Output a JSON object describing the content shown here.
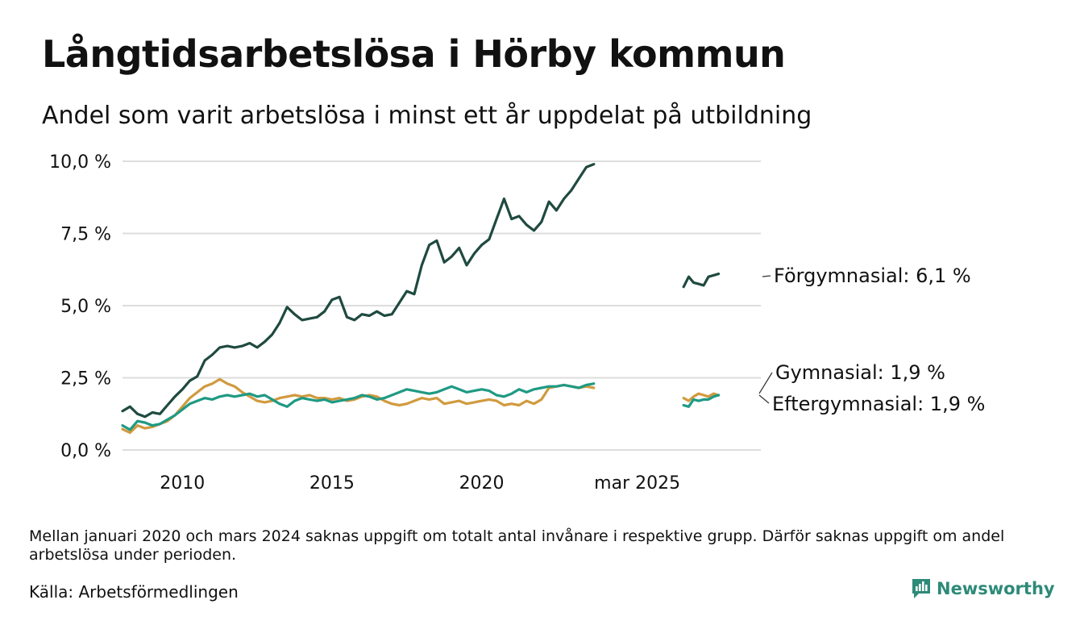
{
  "title": "Långtidsarbetslösa i Hörby kommun",
  "subtitle": "Andel som varit arbetslösa i minst ett år uppdelat på utbildning",
  "note": "Mellan januari 2020 och mars 2024 saknas uppgift om totalt antal invånare i respektive grupp. Därför saknas uppgift om andel arbetslösa under perioden.",
  "source": "Källa: Arbetsförmedlingen",
  "brand": "Newsworthy",
  "brand_color": "#2d8a78",
  "chart_data": {
    "type": "line",
    "title": "Långtidsarbetslösa i Hörby kommun",
    "subtitle": "Andel som varit arbetslösa i minst ett år uppdelat på utbildning",
    "ylim": [
      0,
      10
    ],
    "yticks": [
      {
        "value": 0,
        "label": "0,0 %"
      },
      {
        "value": 2.5,
        "label": "2,5 %"
      },
      {
        "value": 5,
        "label": "5,0 %"
      },
      {
        "value": 7.5,
        "label": "7,5 %"
      },
      {
        "value": 10,
        "label": "10,0 %"
      }
    ],
    "xlim": [
      2008.0,
      2029.33
    ],
    "xticks": [
      {
        "value": 2010,
        "label": "2010"
      },
      {
        "value": 2015,
        "label": "2015"
      },
      {
        "value": 2020,
        "label": "2020"
      },
      {
        "value": 2025.2,
        "label": "mar 2025"
      }
    ],
    "grid": true,
    "legend": "end labels on the right",
    "series": [
      {
        "name": "Förgymnasial",
        "end_label": "Förgymnasial: 6,1 %",
        "color": "#1f4a40",
        "segments": [
          [
            [
              2008.0,
              1.35
            ],
            [
              2008.25,
              1.5
            ],
            [
              2008.5,
              1.25
            ],
            [
              2008.75,
              1.15
            ],
            [
              2009.0,
              1.3
            ],
            [
              2009.25,
              1.25
            ],
            [
              2009.5,
              1.55
            ],
            [
              2009.75,
              1.85
            ],
            [
              2010.0,
              2.1
            ],
            [
              2010.25,
              2.4
            ],
            [
              2010.5,
              2.55
            ],
            [
              2010.75,
              3.1
            ],
            [
              2011.0,
              3.3
            ],
            [
              2011.25,
              3.55
            ],
            [
              2011.5,
              3.6
            ],
            [
              2011.75,
              3.55
            ],
            [
              2012.0,
              3.6
            ],
            [
              2012.25,
              3.7
            ],
            [
              2012.5,
              3.55
            ],
            [
              2012.75,
              3.75
            ],
            [
              2013.0,
              4.0
            ],
            [
              2013.25,
              4.4
            ],
            [
              2013.5,
              4.95
            ],
            [
              2013.75,
              4.7
            ],
            [
              2014.0,
              4.5
            ],
            [
              2014.25,
              4.55
            ],
            [
              2014.5,
              4.6
            ],
            [
              2014.75,
              4.8
            ],
            [
              2015.0,
              5.2
            ],
            [
              2015.25,
              5.3
            ],
            [
              2015.5,
              4.6
            ],
            [
              2015.75,
              4.5
            ],
            [
              2016.0,
              4.7
            ],
            [
              2016.25,
              4.65
            ],
            [
              2016.5,
              4.8
            ],
            [
              2016.75,
              4.65
            ],
            [
              2017.0,
              4.7
            ],
            [
              2017.25,
              5.1
            ],
            [
              2017.5,
              5.5
            ],
            [
              2017.75,
              5.4
            ],
            [
              2018.0,
              6.4
            ],
            [
              2018.25,
              7.1
            ],
            [
              2018.5,
              7.25
            ],
            [
              2018.75,
              6.5
            ],
            [
              2019.0,
              6.7
            ],
            [
              2019.25,
              7.0
            ],
            [
              2019.5,
              6.4
            ],
            [
              2019.75,
              6.8
            ],
            [
              2020.0,
              7.1
            ],
            [
              2020.25,
              7.3
            ],
            [
              2020.5,
              8.0
            ],
            [
              2020.75,
              8.7
            ],
            [
              2021.0,
              8.0
            ],
            [
              2021.25,
              8.1
            ],
            [
              2021.5,
              7.8
            ],
            [
              2021.75,
              7.6
            ],
            [
              2022.0,
              7.9
            ],
            [
              2022.25,
              8.6
            ],
            [
              2022.5,
              8.3
            ],
            [
              2022.75,
              8.7
            ],
            [
              2023.0,
              9.0
            ],
            [
              2023.25,
              9.4
            ],
            [
              2023.5,
              9.8
            ],
            [
              2023.75,
              9.9
            ]
          ],
          [
            [
              2026.75,
              5.65
            ],
            [
              2026.92,
              6.0
            ],
            [
              2027.08,
              5.8
            ],
            [
              2027.25,
              5.75
            ],
            [
              2027.42,
              5.7
            ],
            [
              2027.58,
              6.0
            ],
            [
              2027.75,
              6.05
            ],
            [
              2027.92,
              6.1
            ]
          ]
        ]
      },
      {
        "name": "Gymnasial",
        "end_label": "Gymnasial: 1,9 %",
        "color": "#d19a3f",
        "segments": [
          [
            [
              2008.0,
              0.72
            ],
            [
              2008.25,
              0.6
            ],
            [
              2008.5,
              0.85
            ],
            [
              2008.75,
              0.75
            ],
            [
              2009.0,
              0.8
            ],
            [
              2009.25,
              0.9
            ],
            [
              2009.5,
              1.0
            ],
            [
              2009.75,
              1.2
            ],
            [
              2010.0,
              1.5
            ],
            [
              2010.25,
              1.8
            ],
            [
              2010.5,
              2.0
            ],
            [
              2010.75,
              2.2
            ],
            [
              2011.0,
              2.3
            ],
            [
              2011.25,
              2.45
            ],
            [
              2011.5,
              2.3
            ],
            [
              2011.75,
              2.2
            ],
            [
              2012.0,
              2.0
            ],
            [
              2012.25,
              1.85
            ],
            [
              2012.5,
              1.7
            ],
            [
              2012.75,
              1.65
            ],
            [
              2013.0,
              1.7
            ],
            [
              2013.25,
              1.8
            ],
            [
              2013.5,
              1.85
            ],
            [
              2013.75,
              1.9
            ],
            [
              2014.0,
              1.85
            ],
            [
              2014.25,
              1.9
            ],
            [
              2014.5,
              1.8
            ],
            [
              2014.75,
              1.8
            ],
            [
              2015.0,
              1.75
            ],
            [
              2015.25,
              1.8
            ],
            [
              2015.5,
              1.7
            ],
            [
              2015.75,
              1.75
            ],
            [
              2016.0,
              1.85
            ],
            [
              2016.25,
              1.9
            ],
            [
              2016.5,
              1.85
            ],
            [
              2016.75,
              1.7
            ],
            [
              2017.0,
              1.6
            ],
            [
              2017.25,
              1.55
            ],
            [
              2017.5,
              1.6
            ],
            [
              2017.75,
              1.7
            ],
            [
              2018.0,
              1.8
            ],
            [
              2018.25,
              1.75
            ],
            [
              2018.5,
              1.8
            ],
            [
              2018.75,
              1.6
            ],
            [
              2019.0,
              1.65
            ],
            [
              2019.25,
              1.7
            ],
            [
              2019.5,
              1.6
            ],
            [
              2019.75,
              1.65
            ],
            [
              2020.0,
              1.7
            ],
            [
              2020.25,
              1.75
            ],
            [
              2020.5,
              1.7
            ],
            [
              2020.75,
              1.55
            ],
            [
              2021.0,
              1.6
            ],
            [
              2021.25,
              1.55
            ],
            [
              2021.5,
              1.7
            ],
            [
              2021.75,
              1.6
            ],
            [
              2022.0,
              1.75
            ],
            [
              2022.25,
              2.15
            ],
            [
              2022.5,
              2.2
            ],
            [
              2022.75,
              2.25
            ],
            [
              2023.0,
              2.2
            ],
            [
              2023.25,
              2.15
            ],
            [
              2023.5,
              2.2
            ],
            [
              2023.75,
              2.15
            ]
          ],
          [
            [
              2026.75,
              1.8
            ],
            [
              2026.92,
              1.7
            ],
            [
              2027.08,
              1.85
            ],
            [
              2027.25,
              1.95
            ],
            [
              2027.42,
              1.9
            ],
            [
              2027.58,
              1.85
            ],
            [
              2027.75,
              1.95
            ],
            [
              2027.92,
              1.9
            ]
          ]
        ]
      },
      {
        "name": "Eftergymnasial",
        "end_label": "Eftergymnasial: 1,9 %",
        "color": "#1f9a84",
        "segments": [
          [
            [
              2008.0,
              0.85
            ],
            [
              2008.25,
              0.7
            ],
            [
              2008.5,
              1.0
            ],
            [
              2008.75,
              0.95
            ],
            [
              2009.0,
              0.85
            ],
            [
              2009.25,
              0.9
            ],
            [
              2009.5,
              1.05
            ],
            [
              2009.75,
              1.2
            ],
            [
              2010.0,
              1.4
            ],
            [
              2010.25,
              1.6
            ],
            [
              2010.5,
              1.7
            ],
            [
              2010.75,
              1.8
            ],
            [
              2011.0,
              1.75
            ],
            [
              2011.25,
              1.85
            ],
            [
              2011.5,
              1.9
            ],
            [
              2011.75,
              1.85
            ],
            [
              2012.0,
              1.9
            ],
            [
              2012.25,
              1.95
            ],
            [
              2012.5,
              1.85
            ],
            [
              2012.75,
              1.9
            ],
            [
              2013.0,
              1.75
            ],
            [
              2013.25,
              1.6
            ],
            [
              2013.5,
              1.5
            ],
            [
              2013.75,
              1.7
            ],
            [
              2014.0,
              1.8
            ],
            [
              2014.25,
              1.75
            ],
            [
              2014.5,
              1.7
            ],
            [
              2014.75,
              1.75
            ],
            [
              2015.0,
              1.65
            ],
            [
              2015.25,
              1.7
            ],
            [
              2015.5,
              1.75
            ],
            [
              2015.75,
              1.8
            ],
            [
              2016.0,
              1.9
            ],
            [
              2016.25,
              1.85
            ],
            [
              2016.5,
              1.75
            ],
            [
              2016.75,
              1.8
            ],
            [
              2017.0,
              1.9
            ],
            [
              2017.25,
              2.0
            ],
            [
              2017.5,
              2.1
            ],
            [
              2017.75,
              2.05
            ],
            [
              2018.0,
              2.0
            ],
            [
              2018.25,
              1.95
            ],
            [
              2018.5,
              2.0
            ],
            [
              2018.75,
              2.1
            ],
            [
              2019.0,
              2.2
            ],
            [
              2019.25,
              2.1
            ],
            [
              2019.5,
              2.0
            ],
            [
              2019.75,
              2.05
            ],
            [
              2020.0,
              2.1
            ],
            [
              2020.25,
              2.05
            ],
            [
              2020.5,
              1.9
            ],
            [
              2020.75,
              1.85
            ],
            [
              2021.0,
              1.95
            ],
            [
              2021.25,
              2.1
            ],
            [
              2021.5,
              2.0
            ],
            [
              2021.75,
              2.1
            ],
            [
              2022.0,
              2.15
            ],
            [
              2022.25,
              2.2
            ],
            [
              2022.5,
              2.2
            ],
            [
              2022.75,
              2.25
            ],
            [
              2023.0,
              2.2
            ],
            [
              2023.25,
              2.15
            ],
            [
              2023.5,
              2.25
            ],
            [
              2023.75,
              2.3
            ]
          ],
          [
            [
              2026.75,
              1.55
            ],
            [
              2026.92,
              1.5
            ],
            [
              2027.08,
              1.75
            ],
            [
              2027.25,
              1.7
            ],
            [
              2027.42,
              1.75
            ],
            [
              2027.58,
              1.75
            ],
            [
              2027.75,
              1.85
            ],
            [
              2027.92,
              1.9
            ]
          ]
        ]
      }
    ]
  }
}
